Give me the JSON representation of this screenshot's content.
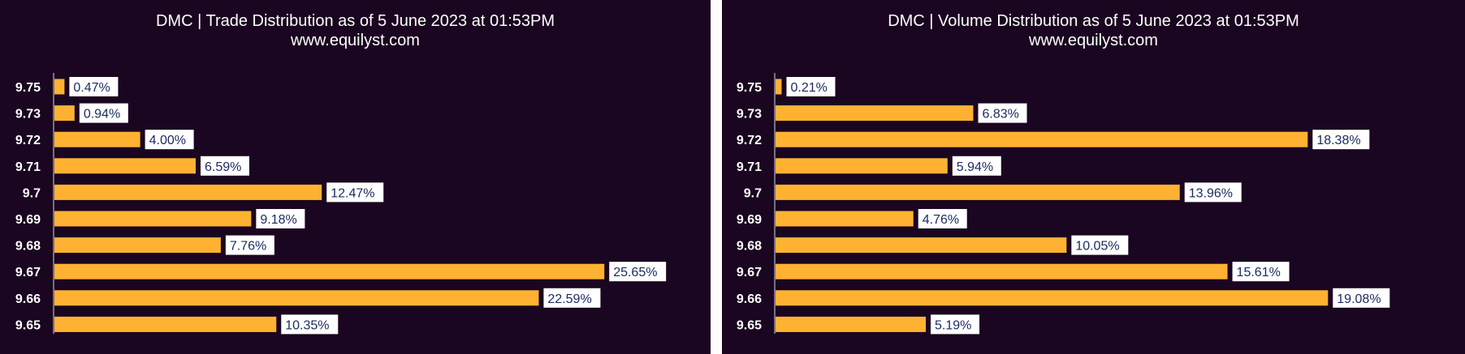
{
  "chart_data": [
    {
      "type": "bar",
      "orientation": "horizontal",
      "title": "DMC | Trade Distribution as of 5 June 2023 at 01:53PM",
      "subtitle": "www.equilyst.com",
      "categories": [
        "9.75",
        "9.73",
        "9.72",
        "9.71",
        "9.7",
        "9.69",
        "9.68",
        "9.67",
        "9.66",
        "9.65"
      ],
      "values": [
        0.47,
        0.94,
        4.0,
        6.59,
        12.47,
        9.18,
        7.76,
        25.65,
        22.59,
        10.35
      ],
      "data_labels": [
        "0.47%",
        "0.94%",
        "4.00%",
        "6.59%",
        "12.47%",
        "9.18%",
        "7.76%",
        "25.65%",
        "22.59%",
        "10.35%"
      ],
      "xlim": [
        0,
        28.9
      ],
      "grid": false,
      "bar_color": "#ffb232",
      "background": "#1a0620"
    },
    {
      "type": "bar",
      "orientation": "horizontal",
      "title": "DMC | Volume Distribution as of 5 June 2023 at 01:53PM",
      "subtitle": "www.equilyst.com",
      "categories": [
        "9.75",
        "9.73",
        "9.72",
        "9.71",
        "9.7",
        "9.69",
        "9.68",
        "9.67",
        "9.66",
        "9.65"
      ],
      "values": [
        0.21,
        6.83,
        18.38,
        5.94,
        13.96,
        4.76,
        10.05,
        15.61,
        19.08,
        5.19
      ],
      "data_labels": [
        "0.21%",
        "6.83%",
        "18.38%",
        "5.94%",
        "13.96%",
        "4.76%",
        "10.05%",
        "15.61%",
        "19.08%",
        "5.19%"
      ],
      "xlim": [
        0,
        21.4
      ],
      "grid": false,
      "bar_color": "#ffb232",
      "background": "#1a0620"
    }
  ]
}
